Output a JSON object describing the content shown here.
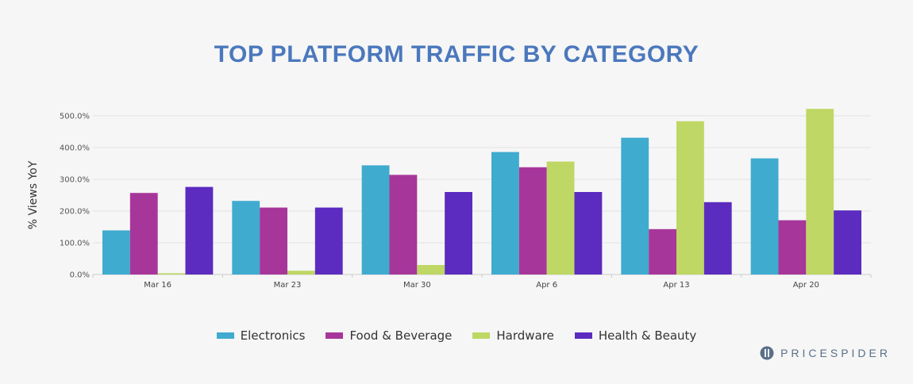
{
  "chart_data": {
    "type": "bar",
    "title": "TOP PLATFORM TRAFFIC BY CATEGORY",
    "ylabel": "% Views YoY",
    "xlabel": "",
    "ylim": [
      0,
      500
    ],
    "yticks": [
      "0.0%",
      "100.0%",
      "200.0%",
      "300.0%",
      "400.0%",
      "500.0%"
    ],
    "ytick_values": [
      0,
      100,
      200,
      300,
      400,
      500
    ],
    "categories": [
      "Mar 16",
      "Mar 23",
      "Mar 30",
      "Apr 6",
      "Apr 13",
      "Apr 20"
    ],
    "grid": true,
    "legend_position": "bottom",
    "series": [
      {
        "name": "Electronics",
        "color": "#3fabcf",
        "values": [
          139,
          232,
          344,
          386,
          431,
          366
        ]
      },
      {
        "name": "Food & Beverage",
        "color": "#a7369a",
        "values": [
          257,
          211,
          314,
          338,
          143,
          171
        ]
      },
      {
        "name": "Hardware",
        "color": "#bfd764",
        "values": [
          4,
          12,
          30,
          356,
          483,
          522
        ]
      },
      {
        "name": "Health & Beauty",
        "color": "#5b2cbf",
        "values": [
          276,
          211,
          260,
          260,
          228,
          202
        ]
      }
    ]
  },
  "brand": {
    "text": "PRICESPIDER",
    "color": "#5a6f8a"
  },
  "title_color": "#4b78bd"
}
